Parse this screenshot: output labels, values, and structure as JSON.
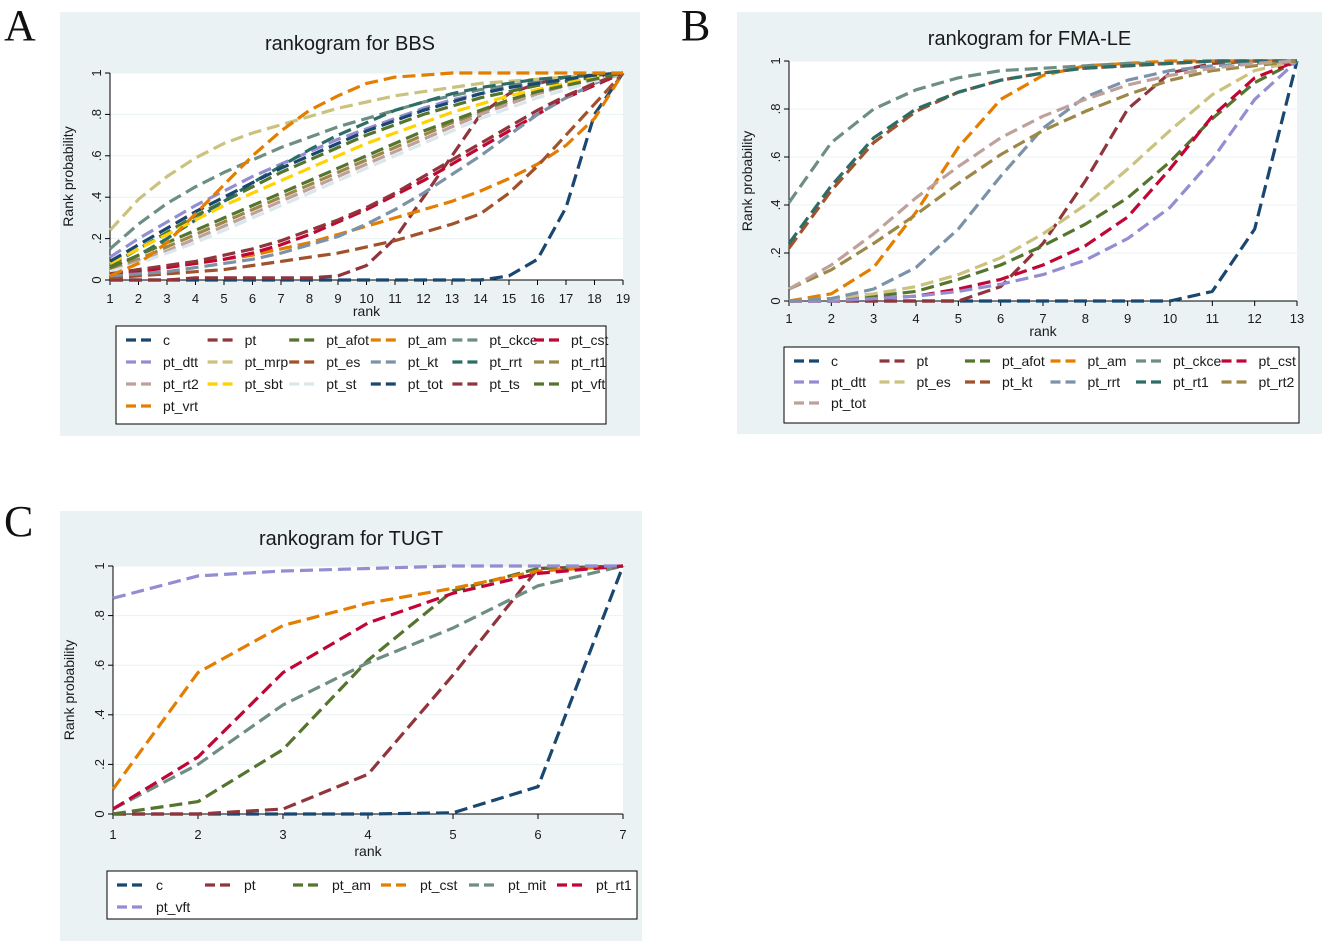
{
  "panels": [
    "A",
    "B",
    "C"
  ],
  "chart_data": [
    {
      "type": "line",
      "title": "rankogram for BBS",
      "xlabel": "rank",
      "ylabel": "Rank probability",
      "x": [
        1,
        2,
        3,
        4,
        5,
        6,
        7,
        8,
        9,
        10,
        11,
        12,
        13,
        14,
        15,
        16,
        17,
        18,
        19
      ],
      "xticks": [
        "1",
        "2",
        "3",
        "4",
        "5",
        "6",
        "7",
        "8",
        "9",
        "10",
        "11",
        "12",
        "13",
        "14",
        "15",
        "16",
        "17",
        "18",
        "19"
      ],
      "yticks": [
        "0",
        ".2",
        ".4",
        ".6",
        ".8",
        "1"
      ],
      "ylim": [
        0,
        1
      ],
      "grid": true,
      "series": [
        {
          "name": "c",
          "color": "#1a476f",
          "values": [
            0,
            0,
            0,
            0,
            0,
            0,
            0,
            0,
            0,
            0,
            0,
            0,
            0,
            0,
            0.02,
            0.1,
            0.35,
            0.8,
            1
          ]
        },
        {
          "name": "pt",
          "color": "#90353b",
          "values": [
            0,
            0,
            0,
            0.01,
            0.01,
            0.01,
            0.01,
            0.01,
            0.02,
            0.07,
            0.2,
            0.4,
            0.6,
            0.8,
            0.9,
            0.95,
            0.98,
            0.99,
            1
          ]
        },
        {
          "name": "pt_afot",
          "color": "#55752f",
          "values": [
            0.07,
            0.15,
            0.23,
            0.31,
            0.38,
            0.45,
            0.52,
            0.58,
            0.64,
            0.7,
            0.75,
            0.8,
            0.84,
            0.88,
            0.91,
            0.94,
            0.96,
            0.98,
            1
          ]
        },
        {
          "name": "pt_am",
          "color": "#e37e00",
          "values": [
            0.03,
            0.05,
            0.06,
            0.08,
            0.1,
            0.12,
            0.15,
            0.18,
            0.22,
            0.26,
            0.3,
            0.34,
            0.38,
            0.43,
            0.49,
            0.56,
            0.65,
            0.78,
            1
          ]
        },
        {
          "name": "pt_ckce",
          "color": "#6e8e84",
          "values": [
            0.15,
            0.27,
            0.37,
            0.45,
            0.52,
            0.58,
            0.64,
            0.69,
            0.74,
            0.78,
            0.82,
            0.86,
            0.89,
            0.92,
            0.94,
            0.96,
            0.98,
            0.99,
            1
          ]
        },
        {
          "name": "pt_cst",
          "color": "#c10534",
          "values": [
            0.02,
            0.04,
            0.06,
            0.08,
            0.1,
            0.13,
            0.17,
            0.22,
            0.28,
            0.34,
            0.41,
            0.48,
            0.56,
            0.64,
            0.72,
            0.8,
            0.88,
            0.94,
            1
          ]
        },
        {
          "name": "pt_dtt",
          "color": "#938dd2",
          "values": [
            0.11,
            0.2,
            0.28,
            0.36,
            0.43,
            0.5,
            0.56,
            0.62,
            0.68,
            0.73,
            0.78,
            0.83,
            0.87,
            0.9,
            0.93,
            0.95,
            0.97,
            0.99,
            1
          ]
        },
        {
          "name": "pt_mrp",
          "color": "#cac27e",
          "values": [
            0.24,
            0.39,
            0.5,
            0.59,
            0.66,
            0.71,
            0.75,
            0.79,
            0.83,
            0.86,
            0.89,
            0.91,
            0.93,
            0.95,
            0.96,
            0.97,
            0.98,
            0.99,
            1
          ]
        },
        {
          "name": "pt_es",
          "color": "#a0522d",
          "values": [
            0.01,
            0.02,
            0.03,
            0.04,
            0.05,
            0.07,
            0.09,
            0.11,
            0.13,
            0.16,
            0.19,
            0.23,
            0.27,
            0.32,
            0.42,
            0.55,
            0.7,
            0.85,
            1
          ]
        },
        {
          "name": "pt_kt",
          "color": "#7b92a8",
          "values": [
            0.02,
            0.03,
            0.04,
            0.06,
            0.08,
            0.1,
            0.13,
            0.17,
            0.21,
            0.27,
            0.34,
            0.42,
            0.51,
            0.6,
            0.7,
            0.8,
            0.88,
            0.95,
            1
          ]
        },
        {
          "name": "pt_rrt",
          "color": "#2d6d66",
          "values": [
            0.05,
            0.12,
            0.2,
            0.29,
            0.38,
            0.47,
            0.55,
            0.63,
            0.7,
            0.76,
            0.82,
            0.86,
            0.9,
            0.93,
            0.95,
            0.97,
            0.98,
            0.99,
            1
          ]
        },
        {
          "name": "pt_rt1",
          "color": "#9c8847",
          "values": [
            0.05,
            0.1,
            0.16,
            0.22,
            0.28,
            0.34,
            0.4,
            0.46,
            0.52,
            0.58,
            0.64,
            0.7,
            0.76,
            0.81,
            0.86,
            0.9,
            0.94,
            0.97,
            1
          ]
        },
        {
          "name": "pt_rt2",
          "color": "#bfa19c",
          "values": [
            0.04,
            0.09,
            0.14,
            0.2,
            0.26,
            0.32,
            0.38,
            0.44,
            0.5,
            0.56,
            0.62,
            0.68,
            0.74,
            0.8,
            0.85,
            0.9,
            0.94,
            0.97,
            1
          ]
        },
        {
          "name": "pt_sbt",
          "color": "#ffd200",
          "values": [
            0.08,
            0.15,
            0.22,
            0.29,
            0.36,
            0.42,
            0.48,
            0.54,
            0.6,
            0.66,
            0.71,
            0.76,
            0.81,
            0.85,
            0.89,
            0.92,
            0.95,
            0.98,
            1
          ]
        },
        {
          "name": "pt_st",
          "color": "#d9e6eb",
          "values": [
            0.04,
            0.08,
            0.13,
            0.18,
            0.24,
            0.3,
            0.36,
            0.42,
            0.48,
            0.54,
            0.6,
            0.66,
            0.72,
            0.78,
            0.83,
            0.88,
            0.92,
            0.96,
            1
          ]
        },
        {
          "name": "pt_tot",
          "color": "#1a476f",
          "values": [
            0.09,
            0.17,
            0.25,
            0.33,
            0.4,
            0.47,
            0.54,
            0.6,
            0.66,
            0.72,
            0.77,
            0.82,
            0.86,
            0.9,
            0.93,
            0.95,
            0.97,
            0.99,
            1
          ]
        },
        {
          "name": "pt_ts",
          "color": "#90353b",
          "values": [
            0.03,
            0.05,
            0.07,
            0.09,
            0.12,
            0.15,
            0.19,
            0.24,
            0.29,
            0.35,
            0.42,
            0.5,
            0.58,
            0.66,
            0.74,
            0.82,
            0.89,
            0.95,
            1
          ]
        },
        {
          "name": "pt_vft",
          "color": "#55752f",
          "values": [
            0.06,
            0.12,
            0.18,
            0.24,
            0.3,
            0.36,
            0.42,
            0.48,
            0.54,
            0.6,
            0.66,
            0.72,
            0.77,
            0.82,
            0.87,
            0.91,
            0.94,
            0.97,
            1
          ]
        },
        {
          "name": "pt_vrt",
          "color": "#e37e00",
          "values": [
            0.02,
            0.08,
            0.18,
            0.32,
            0.46,
            0.6,
            0.72,
            0.82,
            0.89,
            0.95,
            0.98,
            0.99,
            1,
            1,
            1,
            1,
            1,
            1,
            1
          ]
        }
      ]
    },
    {
      "type": "line",
      "title": "rankogram for FMA-LE",
      "xlabel": "rank",
      "ylabel": "Rank probability",
      "x": [
        1,
        2,
        3,
        4,
        5,
        6,
        7,
        8,
        9,
        10,
        11,
        12,
        13
      ],
      "xticks": [
        "1",
        "2",
        "3",
        "4",
        "5",
        "6",
        "7",
        "8",
        "9",
        "10",
        "11",
        "12",
        "13"
      ],
      "yticks": [
        "0",
        ".2",
        ".4",
        ".6",
        ".8",
        "1"
      ],
      "ylim": [
        0,
        1
      ],
      "grid": true,
      "series": [
        {
          "name": "c",
          "color": "#1a476f",
          "values": [
            0,
            0,
            0,
            0,
            0,
            0,
            0,
            0,
            0,
            0,
            0.04,
            0.3,
            1
          ]
        },
        {
          "name": "pt",
          "color": "#90353b",
          "values": [
            0,
            0,
            0,
            0,
            0,
            0.06,
            0.24,
            0.5,
            0.8,
            0.95,
            0.99,
            1,
            1
          ]
        },
        {
          "name": "pt_afot",
          "color": "#55752f",
          "values": [
            0,
            0.01,
            0.02,
            0.04,
            0.09,
            0.15,
            0.23,
            0.32,
            0.43,
            0.58,
            0.76,
            0.91,
            1
          ]
        },
        {
          "name": "pt_am",
          "color": "#e37e00",
          "values": [
            0,
            0.03,
            0.14,
            0.37,
            0.64,
            0.84,
            0.94,
            0.98,
            0.99,
            1,
            1,
            1,
            1
          ]
        },
        {
          "name": "pt_ckce",
          "color": "#6e8e84",
          "values": [
            0.41,
            0.66,
            0.8,
            0.88,
            0.93,
            0.96,
            0.97,
            0.98,
            0.99,
            0.99,
            1,
            1,
            1
          ]
        },
        {
          "name": "pt_cst",
          "color": "#c10534",
          "values": [
            0,
            0,
            0.01,
            0.02,
            0.05,
            0.09,
            0.15,
            0.23,
            0.35,
            0.55,
            0.77,
            0.93,
            1
          ]
        },
        {
          "name": "pt_dtt",
          "color": "#938dd2",
          "values": [
            0,
            0,
            0.01,
            0.02,
            0.04,
            0.07,
            0.11,
            0.17,
            0.26,
            0.39,
            0.59,
            0.84,
            1
          ]
        },
        {
          "name": "pt_es",
          "color": "#cac27e",
          "values": [
            0,
            0.01,
            0.03,
            0.06,
            0.11,
            0.18,
            0.28,
            0.4,
            0.55,
            0.71,
            0.86,
            0.96,
            1
          ]
        },
        {
          "name": "pt_kt",
          "color": "#a0522d",
          "values": [
            0.22,
            0.46,
            0.66,
            0.79,
            0.87,
            0.92,
            0.95,
            0.97,
            0.98,
            0.99,
            1,
            1,
            1
          ]
        },
        {
          "name": "pt_rrt",
          "color": "#7b92a8",
          "values": [
            0,
            0.01,
            0.05,
            0.14,
            0.3,
            0.52,
            0.72,
            0.85,
            0.92,
            0.96,
            0.98,
            0.99,
            1
          ]
        },
        {
          "name": "pt_rt1",
          "color": "#2d6d66",
          "values": [
            0.24,
            0.48,
            0.68,
            0.8,
            0.87,
            0.92,
            0.95,
            0.97,
            0.98,
            0.99,
            1,
            1,
            1
          ]
        },
        {
          "name": "pt_rt2",
          "color": "#9c8847",
          "values": [
            0.05,
            0.13,
            0.24,
            0.36,
            0.49,
            0.61,
            0.71,
            0.79,
            0.86,
            0.92,
            0.96,
            0.98,
            1
          ]
        },
        {
          "name": "pt_tot",
          "color": "#bfa19c",
          "values": [
            0.05,
            0.15,
            0.28,
            0.43,
            0.56,
            0.68,
            0.77,
            0.84,
            0.9,
            0.94,
            0.97,
            0.99,
            1
          ]
        }
      ]
    },
    {
      "type": "line",
      "title": "rankogram for TUGT",
      "xlabel": "rank",
      "ylabel": "Rank probability",
      "x": [
        1,
        2,
        3,
        4,
        5,
        6,
        7
      ],
      "xticks": [
        "1",
        "2",
        "3",
        "4",
        "5",
        "6",
        "7"
      ],
      "yticks": [
        "0",
        ".2",
        ".4",
        ".6",
        ".8",
        "1"
      ],
      "ylim": [
        0,
        1
      ],
      "grid": true,
      "series": [
        {
          "name": "c",
          "color": "#1a476f",
          "values": [
            0,
            0,
            0,
            0,
            0.005,
            0.11,
            1
          ]
        },
        {
          "name": "pt",
          "color": "#90353b",
          "values": [
            0,
            0,
            0.02,
            0.16,
            0.56,
            0.99,
            1
          ]
        },
        {
          "name": "pt_am",
          "color": "#55752f",
          "values": [
            0,
            0.05,
            0.26,
            0.62,
            0.9,
            0.99,
            1
          ]
        },
        {
          "name": "pt_cst",
          "color": "#e37e00",
          "values": [
            0.1,
            0.57,
            0.76,
            0.85,
            0.91,
            0.98,
            1
          ]
        },
        {
          "name": "pt_mit",
          "color": "#6e8e84",
          "values": [
            0.02,
            0.2,
            0.44,
            0.61,
            0.75,
            0.92,
            1
          ]
        },
        {
          "name": "pt_rt1",
          "color": "#c10534",
          "values": [
            0.02,
            0.23,
            0.57,
            0.77,
            0.89,
            0.97,
            1
          ]
        },
        {
          "name": "pt_vft",
          "color": "#938dd2",
          "values": [
            0.87,
            0.96,
            0.98,
            0.99,
            1,
            1,
            1
          ]
        }
      ]
    }
  ]
}
